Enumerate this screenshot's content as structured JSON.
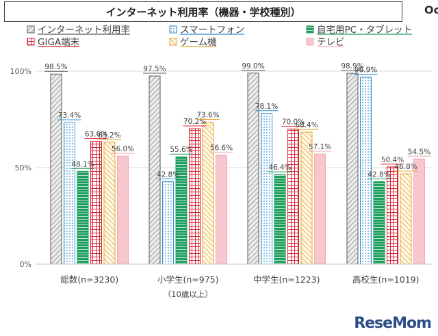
{
  "header": {
    "title": "インターネット利用率（機器・学校種別）",
    "corner_mark": "Oc"
  },
  "watermark": {
    "text": "ReseMom"
  },
  "chart_data": {
    "type": "bar",
    "title": "インターネット利用率（機器・学校種別）",
    "ylim": [
      0,
      100
    ],
    "y_ticks": [
      "0%",
      "50%",
      "100%"
    ],
    "grid": true,
    "legend_position": "top",
    "categories": [
      {
        "label": "総数(n=3230)",
        "sublabel": ""
      },
      {
        "label": "小学生(n=975)",
        "sublabel": "（10歳以上）"
      },
      {
        "label": "中学生(n=1223)",
        "sublabel": ""
      },
      {
        "label": "高校生(n=1019)",
        "sublabel": ""
      }
    ],
    "series": [
      {
        "name": "インターネット利用率",
        "color": "#595959",
        "fill": "#e6e6e6",
        "pattern": "hatch-gray",
        "values": [
          98.5,
          97.5,
          99.0,
          98.9
        ]
      },
      {
        "name": "スマートフォン",
        "color": "#2e8fd0",
        "fill": "#ffffff",
        "pattern": "dots-blue",
        "values": [
          73.4,
          42.8,
          78.1,
          96.9
        ]
      },
      {
        "name": "自宅用PC・タブレット",
        "color": "#1e9e5e",
        "fill": "#1e9e5e",
        "pattern": "stripes-green",
        "values": [
          48.1,
          55.6,
          46.4,
          42.8
        ]
      },
      {
        "name": "GIGA端末",
        "color": "#d8202f",
        "fill": "#ffffff",
        "pattern": "grid-red",
        "values": [
          63.6,
          70.2,
          70.0,
          50.4
        ]
      },
      {
        "name": "ゲーム機",
        "color": "#e0a72e",
        "fill": "#ffffff",
        "pattern": "hatch-orange",
        "values": [
          63.2,
          73.6,
          68.4,
          46.8
        ]
      },
      {
        "name": "テレビ",
        "color": "#f3a9b4",
        "fill": "#f8c6cd",
        "pattern": "solid-pink",
        "values": [
          56.0,
          56.6,
          57.1,
          54.5
        ]
      }
    ],
    "data_labels": [
      [
        "98.5%",
        "73.4%",
        "48.1%",
        "63.6%",
        "63.2%",
        "56.0%"
      ],
      [
        "97.5%",
        "42.8%",
        "55.6%",
        "70.2%",
        "73.6%",
        "56.6%"
      ],
      [
        "99.0%",
        "78.1%",
        "46.4%",
        "70.0%",
        "68.4%",
        "57.1%"
      ],
      [
        "98.9%",
        "96.9%",
        "42.8%",
        "50.4%",
        "46.8%",
        "54.5%"
      ]
    ]
  }
}
